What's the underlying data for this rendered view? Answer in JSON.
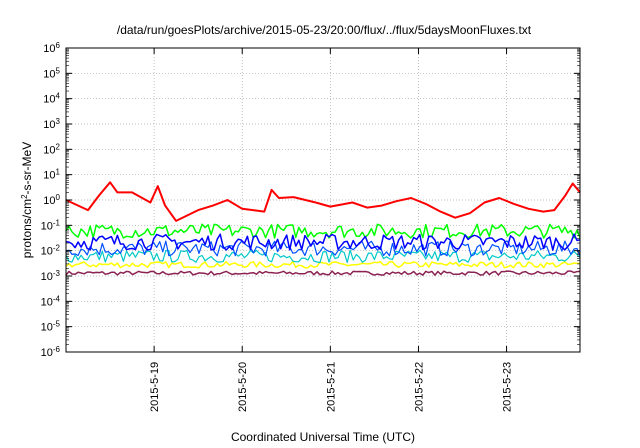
{
  "chart_data": {
    "type": "line",
    "title": "/data/run/goesPlots/archive/2015-05-23/20:00/flux/../flux/5daysMoonFluxes.txt",
    "xlabel": "Coordinated Universal Time (UTC)",
    "ylabel": {
      "prefix": "protons/cm",
      "sup": "2",
      "suffix": "-s-sr-MeV"
    },
    "yscale": "log",
    "ylim": [
      1e-06,
      1000000.0
    ],
    "xlim": [
      "2015-05-18 00:00",
      "2015-05-23 20:00"
    ],
    "grid": true,
    "x_ticks": [
      "2015-5-19",
      "2015-5-20",
      "2015-5-21",
      "2015-5-22",
      "2015-5-23"
    ],
    "y_ticks": [
      {
        "base": "10",
        "exp": "-6"
      },
      {
        "base": "10",
        "exp": "-5"
      },
      {
        "base": "10",
        "exp": "-4"
      },
      {
        "base": "10",
        "exp": "-3"
      },
      {
        "base": "10",
        "exp": "-2"
      },
      {
        "base": "10",
        "exp": "-1"
      },
      {
        "base": "10",
        "exp": "0"
      },
      {
        "base": "10",
        "exp": "1"
      },
      {
        "base": "10",
        "exp": "2"
      },
      {
        "base": "10",
        "exp": "3"
      },
      {
        "base": "10",
        "exp": "4"
      },
      {
        "base": "10",
        "exp": "5"
      },
      {
        "base": "10",
        "exp": "6"
      }
    ],
    "series": [
      {
        "color": "#ff0000",
        "width": 2.0,
        "x": [
          "2015-05-18 00:00",
          "2015-05-18 06:00",
          "2015-05-18 09:00",
          "2015-05-18 12:00",
          "2015-05-18 14:00",
          "2015-05-18 18:00",
          "2015-05-18 23:00",
          "2015-05-19 01:00",
          "2015-05-19 03:00",
          "2015-05-19 06:00",
          "2015-05-19 12:00",
          "2015-05-19 16:00",
          "2015-05-19 20:00",
          "2015-05-20 00:00",
          "2015-05-20 06:00",
          "2015-05-20 08:00",
          "2015-05-20 10:00",
          "2015-05-20 14:00",
          "2015-05-20 20:00",
          "2015-05-21 00:00",
          "2015-05-21 06:00",
          "2015-05-21 10:00",
          "2015-05-21 14:00",
          "2015-05-21 18:00",
          "2015-05-21 22:00",
          "2015-05-22 02:00",
          "2015-05-22 06:00",
          "2015-05-22 10:00",
          "2015-05-22 14:00",
          "2015-05-22 18:00",
          "2015-05-22 22:00",
          "2015-05-23 02:00",
          "2015-05-23 06:00",
          "2015-05-23 10:00",
          "2015-05-23 13:00",
          "2015-05-23 16:00",
          "2015-05-23 18:00",
          "2015-05-23 20:00"
        ],
        "y": [
          1.0,
          0.4,
          1.5,
          5.0,
          2.0,
          2.0,
          0.8,
          3.5,
          0.6,
          0.15,
          0.4,
          0.6,
          1.0,
          0.45,
          0.35,
          2.5,
          1.2,
          1.3,
          0.8,
          0.55,
          0.8,
          0.5,
          0.6,
          0.9,
          1.2,
          0.7,
          0.35,
          0.2,
          0.3,
          0.8,
          1.2,
          0.7,
          0.45,
          0.35,
          0.4,
          1.5,
          4.5,
          2.0
        ]
      },
      {
        "color": "#00ff00",
        "width": 1.5,
        "base": 0.06,
        "spread": 0.28
      },
      {
        "color": "#0000ff",
        "width": 1.5,
        "base": 0.022,
        "spread": 0.32
      },
      {
        "color": "#0050ff",
        "width": 1.2,
        "base": 0.012,
        "spread": 0.3
      },
      {
        "color": "#00c8c8",
        "width": 1.2,
        "base": 0.006,
        "spread": 0.25
      },
      {
        "color": "#ffff00",
        "width": 1.5,
        "base": 0.0028,
        "spread": 0.12
      },
      {
        "color": "#8b2252",
        "width": 1.5,
        "base": 0.0013,
        "spread": 0.08
      }
    ]
  }
}
